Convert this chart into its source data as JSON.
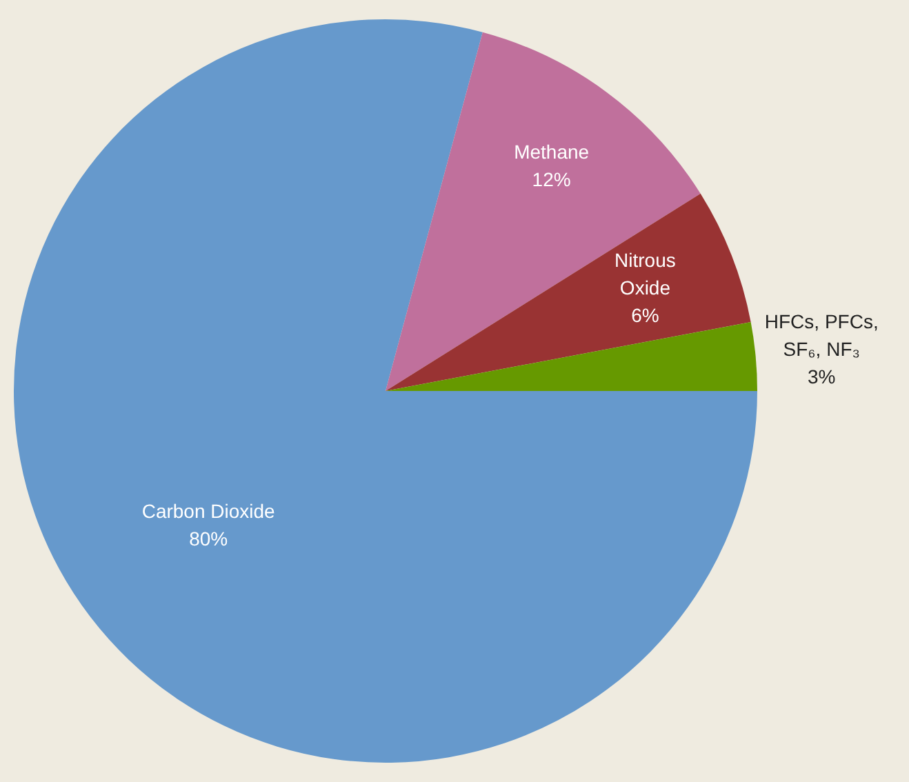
{
  "chart_data": {
    "type": "pie",
    "categories": [
      "Carbon Dioxide",
      "Methane",
      "Nitrous Oxide",
      "HFCs, PFCs, SF₆, NF₃"
    ],
    "values": [
      80,
      12,
      6,
      3
    ],
    "colors": [
      "#6699cc",
      "#c0709c",
      "#993333",
      "#669900"
    ],
    "value_labels": [
      "80%",
      "12%",
      "6%",
      "3%"
    ],
    "legend": false
  }
}
